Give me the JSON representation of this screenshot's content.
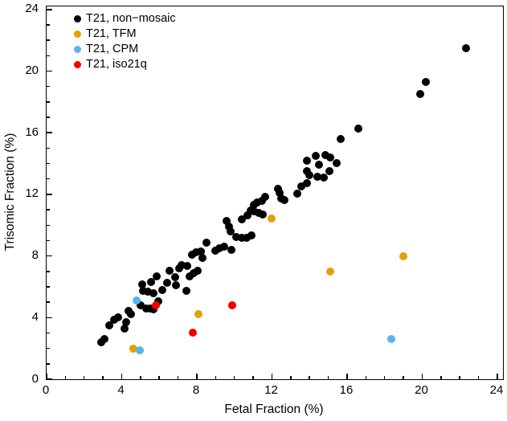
{
  "chart_data": {
    "type": "scatter",
    "title": "",
    "xlabel": "Fetal Fraction (%)",
    "ylabel": "Trisomic Fraction (%)",
    "xlim": [
      0,
      24.3
    ],
    "ylim": [
      0,
      24.2
    ],
    "x_major_ticks": [
      0,
      4,
      8,
      12,
      16,
      20,
      24
    ],
    "y_major_ticks": [
      0,
      4,
      8,
      12,
      16,
      20,
      24
    ],
    "minor_tick_step": 1,
    "grid": false,
    "legend_position": "top-left-inside",
    "marker_diameter_px": 10,
    "series": [
      {
        "name": "T21, non−mosaic",
        "color": "#000000",
        "points": [
          [
            2.9,
            2.4
          ],
          [
            3.1,
            2.6
          ],
          [
            3.35,
            3.5
          ],
          [
            3.6,
            3.85
          ],
          [
            3.8,
            4.0
          ],
          [
            4.15,
            3.3
          ],
          [
            4.25,
            3.7
          ],
          [
            4.35,
            4.45
          ],
          [
            4.5,
            4.2
          ],
          [
            5.0,
            4.8
          ],
          [
            5.3,
            4.6
          ],
          [
            5.5,
            4.6
          ],
          [
            5.7,
            4.55
          ],
          [
            5.95,
            5.05
          ],
          [
            5.15,
            5.75
          ],
          [
            5.4,
            5.7
          ],
          [
            5.7,
            5.6
          ],
          [
            6.15,
            5.8
          ],
          [
            5.1,
            6.15
          ],
          [
            5.55,
            6.3
          ],
          [
            5.85,
            6.7
          ],
          [
            6.4,
            6.25
          ],
          [
            6.55,
            7.05
          ],
          [
            6.85,
            6.6
          ],
          [
            6.9,
            6.1
          ],
          [
            7.05,
            7.2
          ],
          [
            7.2,
            7.4
          ],
          [
            7.45,
            5.75
          ],
          [
            7.6,
            6.7
          ],
          [
            7.85,
            6.9
          ],
          [
            8.05,
            7.05
          ],
          [
            7.5,
            7.35
          ],
          [
            7.75,
            8.1
          ],
          [
            7.95,
            8.25
          ],
          [
            8.2,
            8.3
          ],
          [
            8.3,
            7.85
          ],
          [
            8.5,
            8.85
          ],
          [
            9.0,
            8.35
          ],
          [
            9.2,
            8.5
          ],
          [
            9.45,
            8.6
          ],
          [
            9.85,
            8.4
          ],
          [
            9.6,
            10.25
          ],
          [
            9.7,
            9.9
          ],
          [
            9.8,
            9.6
          ],
          [
            10.1,
            9.25
          ],
          [
            10.4,
            9.2
          ],
          [
            10.65,
            9.2
          ],
          [
            10.9,
            9.35
          ],
          [
            10.4,
            10.4
          ],
          [
            10.7,
            10.65
          ],
          [
            10.85,
            10.95
          ],
          [
            11.05,
            11.3
          ],
          [
            11.2,
            11.5
          ],
          [
            11.45,
            11.6
          ],
          [
            11.65,
            11.85
          ],
          [
            11.05,
            10.9
          ],
          [
            11.3,
            10.8
          ],
          [
            11.5,
            10.7
          ],
          [
            12.3,
            12.35
          ],
          [
            12.4,
            12.1
          ],
          [
            12.5,
            11.75
          ],
          [
            12.65,
            11.65
          ],
          [
            13.35,
            12.05
          ],
          [
            13.55,
            12.5
          ],
          [
            13.85,
            12.7
          ],
          [
            13.85,
            14.2
          ],
          [
            14.35,
            14.5
          ],
          [
            14.85,
            14.55
          ],
          [
            15.1,
            14.4
          ],
          [
            14.5,
            13.95
          ],
          [
            15.45,
            14.05
          ],
          [
            15.05,
            13.5
          ],
          [
            13.85,
            13.5
          ],
          [
            14.0,
            13.25
          ],
          [
            14.4,
            13.15
          ],
          [
            14.75,
            13.1
          ],
          [
            15.65,
            15.6
          ],
          [
            16.6,
            16.25
          ],
          [
            19.9,
            18.5
          ],
          [
            20.2,
            19.3
          ],
          [
            22.35,
            21.5
          ]
        ]
      },
      {
        "name": "T21, TFM",
        "color": "#E69F00",
        "points": [
          [
            4.6,
            2.0
          ],
          [
            8.1,
            4.25
          ],
          [
            12.0,
            10.45
          ],
          [
            15.1,
            7.0
          ],
          [
            19.0,
            8.0
          ]
        ]
      },
      {
        "name": "T21, CPM",
        "color": "#56B4E9",
        "points": [
          [
            4.8,
            5.1
          ],
          [
            4.95,
            1.9
          ],
          [
            18.35,
            2.6
          ]
        ]
      },
      {
        "name": "T21, iso21q",
        "color": "#F40000",
        "points": [
          [
            5.8,
            4.8
          ],
          [
            7.8,
            3.0
          ],
          [
            9.9,
            4.8
          ]
        ]
      }
    ]
  }
}
